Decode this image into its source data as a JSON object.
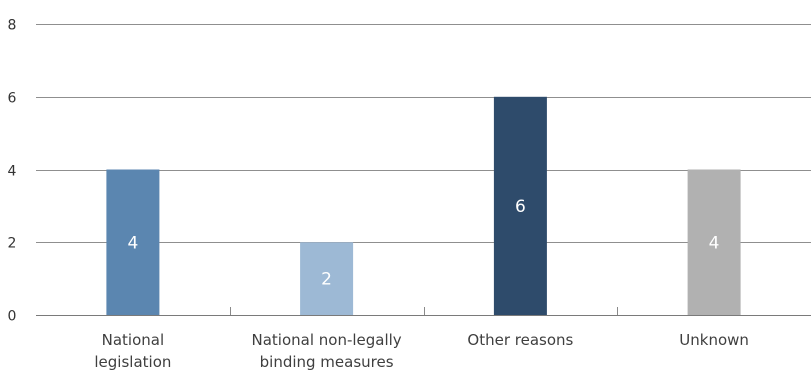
{
  "chart_data": {
    "type": "bar",
    "title": "",
    "xlabel": "",
    "ylabel": "",
    "categories": [
      [
        "National",
        "legislation"
      ],
      [
        "National non-legally",
        "binding measures"
      ],
      [
        "Other reasons"
      ],
      [
        "Unknown"
      ]
    ],
    "values": [
      4,
      2,
      6,
      4
    ],
    "data_labels": [
      "4",
      "2",
      "6",
      "4"
    ],
    "colors": [
      "#5b86b0",
      "#9db9d5",
      "#2e4b6b",
      "#b1b1b1"
    ],
    "ylim": [
      0,
      8
    ],
    "yticks": [
      {
        "value": 0,
        "label": "0"
      },
      {
        "value": 2,
        "label": "2"
      },
      {
        "value": 4,
        "label": "4"
      },
      {
        "value": 6,
        "label": "6"
      },
      {
        "value": 8,
        "label": "8"
      }
    ],
    "grid": true,
    "legend": "none"
  }
}
